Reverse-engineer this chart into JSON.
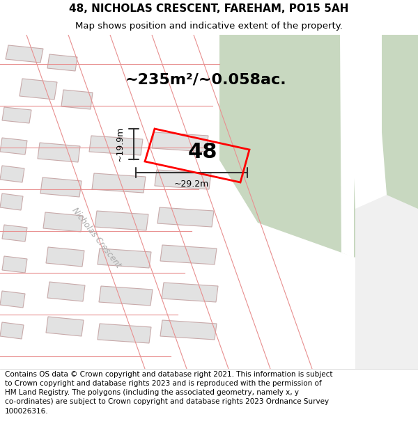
{
  "title_line1": "48, NICHOLAS CRESCENT, FAREHAM, PO15 5AH",
  "title_line2": "Map shows position and indicative extent of the property.",
  "area_text": "~235m²/~0.058ac.",
  "property_number": "48",
  "dim_width": "~29.2m",
  "dim_height": "~19.9m",
  "road_label": "Nicholas Crescent",
  "footer_wrapped": "Contains OS data © Crown copyright and database right 2021. This information is subject\nto Crown copyright and database rights 2023 and is reproduced with the permission of\nHM Land Registry. The polygons (including the associated geometry, namely x, y\nco-ordinates) are subject to Crown copyright and database rights 2023 Ordnance Survey\n100026316.",
  "green_area_color": "#c8d8c0",
  "property_outline": "#ff0000",
  "dim_line_color": "#333333",
  "title_fontsize": 11,
  "subtitle_fontsize": 9.5,
  "area_fontsize": 16,
  "footer_fontsize": 7.5
}
